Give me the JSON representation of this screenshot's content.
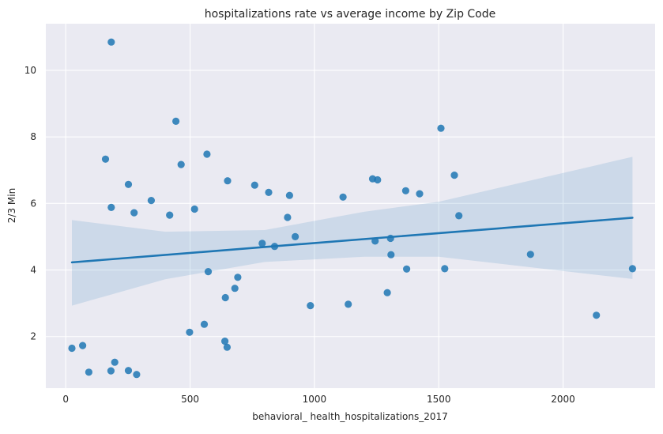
{
  "chart_data": {
    "type": "scatter",
    "title": "hospitalizations rate vs average income by Zip Code",
    "xlabel": "behavioral_ health_hospitalizations_2017",
    "ylabel": "2/3 Min",
    "xlim": [
      -80,
      2370
    ],
    "ylim": [
      0.45,
      11.4
    ],
    "xticks": [
      0,
      500,
      1000,
      1500,
      2000
    ],
    "yticks": [
      2,
      4,
      6,
      8,
      10
    ],
    "grid": true,
    "background": "#eaeaf2",
    "grid_color": "#ffffff",
    "point_color": "#1f77b4",
    "line_color": "#1f77b4",
    "band_color": "#1f77b4",
    "points": [
      {
        "x": 25,
        "y": 1.65
      },
      {
        "x": 68,
        "y": 1.73
      },
      {
        "x": 93,
        "y": 0.93
      },
      {
        "x": 182,
        "y": 0.97
      },
      {
        "x": 197,
        "y": 1.23
      },
      {
        "x": 252,
        "y": 0.98
      },
      {
        "x": 285,
        "y": 0.86
      },
      {
        "x": 183,
        "y": 10.85
      },
      {
        "x": 160,
        "y": 7.33
      },
      {
        "x": 252,
        "y": 6.57
      },
      {
        "x": 183,
        "y": 5.88
      },
      {
        "x": 275,
        "y": 5.72
      },
      {
        "x": 344,
        "y": 6.09
      },
      {
        "x": 418,
        "y": 5.65
      },
      {
        "x": 443,
        "y": 8.47
      },
      {
        "x": 464,
        "y": 7.17
      },
      {
        "x": 518,
        "y": 5.83
      },
      {
        "x": 568,
        "y": 7.48
      },
      {
        "x": 573,
        "y": 3.95
      },
      {
        "x": 498,
        "y": 2.13
      },
      {
        "x": 557,
        "y": 2.37
      },
      {
        "x": 640,
        "y": 1.86
      },
      {
        "x": 649,
        "y": 1.68
      },
      {
        "x": 642,
        "y": 3.17
      },
      {
        "x": 680,
        "y": 3.45
      },
      {
        "x": 692,
        "y": 3.78
      },
      {
        "x": 651,
        "y": 6.68
      },
      {
        "x": 760,
        "y": 6.55
      },
      {
        "x": 816,
        "y": 6.33
      },
      {
        "x": 790,
        "y": 4.8
      },
      {
        "x": 840,
        "y": 4.71
      },
      {
        "x": 892,
        "y": 5.58
      },
      {
        "x": 900,
        "y": 6.24
      },
      {
        "x": 923,
        "y": 5.0
      },
      {
        "x": 984,
        "y": 2.93
      },
      {
        "x": 1115,
        "y": 6.19
      },
      {
        "x": 1136,
        "y": 2.97
      },
      {
        "x": 1234,
        "y": 6.74
      },
      {
        "x": 1254,
        "y": 6.71
      },
      {
        "x": 1244,
        "y": 4.87
      },
      {
        "x": 1306,
        "y": 4.95
      },
      {
        "x": 1308,
        "y": 4.46
      },
      {
        "x": 1293,
        "y": 3.32
      },
      {
        "x": 1367,
        "y": 6.38
      },
      {
        "x": 1371,
        "y": 4.03
      },
      {
        "x": 1423,
        "y": 6.29
      },
      {
        "x": 1509,
        "y": 8.26
      },
      {
        "x": 1524,
        "y": 4.04
      },
      {
        "x": 1563,
        "y": 6.85
      },
      {
        "x": 1581,
        "y": 5.63
      },
      {
        "x": 1869,
        "y": 4.47
      },
      {
        "x": 2134,
        "y": 2.64
      },
      {
        "x": 2279,
        "y": 4.04
      }
    ],
    "regression": {
      "x": [
        25,
        2279
      ],
      "y": [
        4.23,
        5.57
      ]
    },
    "confidence_band": {
      "x": [
        25,
        400,
        800,
        1200,
        1500,
        2279
      ],
      "upper": [
        5.5,
        5.15,
        5.2,
        5.75,
        6.05,
        7.4
      ],
      "lower": [
        2.93,
        3.72,
        4.24,
        4.4,
        4.4,
        3.73
      ]
    }
  }
}
